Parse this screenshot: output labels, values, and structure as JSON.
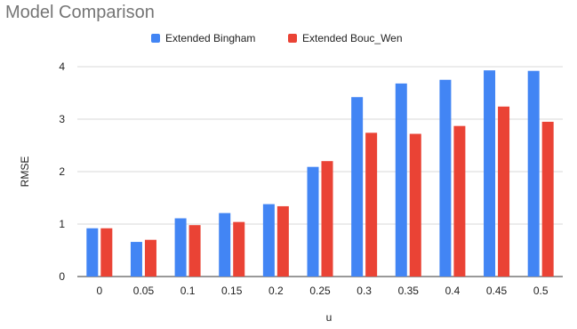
{
  "chart_data": {
    "type": "bar",
    "title": "Model Comparison",
    "xlabel": "u",
    "ylabel": "RMSE",
    "categories": [
      "0",
      "0.05",
      "0.1",
      "0.15",
      "0.2",
      "0.25",
      "0.3",
      "0.35",
      "0.4",
      "0.45",
      "0.5"
    ],
    "series": [
      {
        "name": "Extended Bingham",
        "color": "#4285f4",
        "values": [
          0.92,
          0.66,
          1.11,
          1.21,
          1.38,
          2.09,
          3.42,
          3.68,
          3.75,
          3.93,
          3.92
        ]
      },
      {
        "name": "Extended Bouc_Wen",
        "color": "#ea4335",
        "values": [
          0.92,
          0.7,
          0.98,
          1.04,
          1.34,
          2.2,
          2.74,
          2.72,
          2.87,
          3.24,
          2.95
        ]
      }
    ],
    "ylim": [
      0,
      4
    ],
    "yticks": [
      "0",
      "1",
      "2",
      "3",
      "4"
    ],
    "grid": true,
    "legend_position": "top"
  }
}
